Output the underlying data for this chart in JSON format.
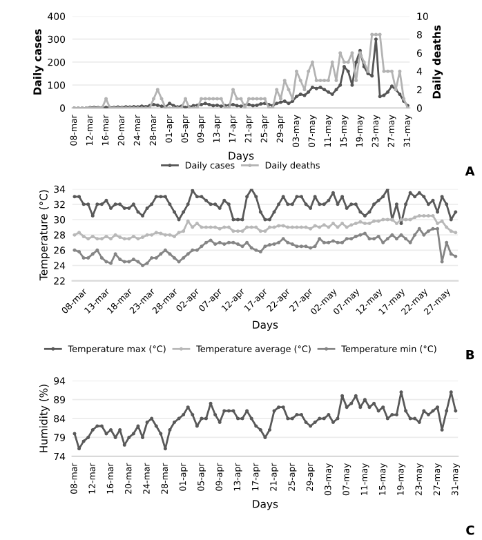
{
  "chart_data": [
    {
      "type": "line",
      "xlabel": "Days",
      "ylabel": "Daily cases",
      "y2label": "Daily deaths",
      "categories": [
        "08-mar",
        null,
        null,
        null,
        "12-mar",
        null,
        null,
        null,
        "16-mar",
        null,
        null,
        null,
        "20-mar",
        null,
        null,
        null,
        "24-mar",
        null,
        null,
        null,
        "28-mar",
        null,
        null,
        null,
        "01-apr",
        null,
        null,
        null,
        "05-apr",
        null,
        null,
        null,
        "09-apr",
        null,
        null,
        null,
        "13-apr",
        null,
        null,
        null,
        "17-apr",
        null,
        null,
        null,
        "21-apr",
        null,
        null,
        null,
        "25-apr",
        null,
        null,
        null,
        "29-apr",
        null,
        null,
        null,
        "03-may",
        null,
        null,
        null,
        "07-may",
        null,
        null,
        null,
        "11-may",
        null,
        null,
        null,
        "15-may",
        null,
        null,
        null,
        "19-may",
        null,
        null,
        null,
        "23-may",
        null,
        null,
        null,
        "27-may",
        null,
        null,
        null,
        "31-may"
      ],
      "series": [
        {
          "name": "Daily cases",
          "color": "#555555",
          "values": [
            0,
            0,
            0,
            0,
            2,
            3,
            2,
            1,
            3,
            2,
            3,
            4,
            3,
            5,
            4,
            6,
            5,
            8,
            6,
            10,
            15,
            12,
            8,
            5,
            20,
            10,
            5,
            8,
            3,
            5,
            10,
            12,
            15,
            20,
            15,
            10,
            12,
            8,
            10,
            12,
            15,
            10,
            8,
            12,
            15,
            10,
            12,
            18,
            20,
            15,
            10,
            20,
            25,
            30,
            20,
            30,
            50,
            60,
            55,
            70,
            90,
            85,
            90,
            80,
            70,
            60,
            80,
            100,
            180,
            160,
            100,
            200,
            250,
            180,
            150,
            140,
            300,
            50,
            55,
            70,
            95,
            80,
            60,
            30,
            10
          ]
        },
        {
          "name": "Daily deaths",
          "color": "#b3b3b3",
          "axis": "y2",
          "values": [
            0,
            0,
            0,
            0,
            0,
            0,
            0,
            0,
            1,
            0,
            0,
            0,
            0,
            0,
            0,
            0,
            0,
            0,
            0,
            0,
            1,
            2,
            1,
            0,
            0,
            0,
            0,
            0,
            1,
            0,
            0,
            0,
            1,
            1,
            1,
            1,
            1,
            1,
            0,
            0,
            2,
            1,
            1,
            0,
            1,
            1,
            1,
            1,
            1,
            0,
            0,
            2,
            1,
            3,
            2,
            1,
            4,
            3,
            2,
            4,
            5,
            3,
            3,
            3,
            3,
            5,
            3,
            6,
            5,
            5,
            6,
            3,
            6,
            5,
            4,
            8,
            8,
            8,
            4,
            4,
            4,
            2,
            4,
            1,
            0
          ]
        }
      ],
      "ylim": [
        0,
        400
      ],
      "yticks": [
        0,
        100,
        200,
        300,
        400
      ],
      "y2lim": [
        0,
        10
      ],
      "y2ticks": [
        0,
        2,
        4,
        6,
        8,
        10
      ],
      "grid": "y",
      "legend": "bottom",
      "marker": "circle",
      "annotations": [
        "A"
      ]
    },
    {
      "type": "line",
      "xlabel": "Days",
      "ylabel": "Temperature (°C)",
      "categories": [
        "08-mar",
        null,
        null,
        null,
        null,
        "13-mar",
        null,
        null,
        null,
        null,
        "18-mar",
        null,
        null,
        null,
        null,
        "23-mar",
        null,
        null,
        null,
        null,
        "28-mar",
        null,
        null,
        null,
        null,
        "02-apr",
        null,
        null,
        null,
        null,
        "07-apr",
        null,
        null,
        null,
        null,
        "12-apr",
        null,
        null,
        null,
        null,
        "17-apr",
        null,
        null,
        null,
        null,
        "22-apr",
        null,
        null,
        null,
        null,
        "27-apr",
        null,
        null,
        null,
        null,
        "02-may",
        null,
        null,
        null,
        null,
        "07-may",
        null,
        null,
        null,
        null,
        "12-may",
        null,
        null,
        null,
        null,
        "17-may",
        null,
        null,
        null,
        null,
        "22-may",
        null,
        null,
        null,
        null,
        "27-may",
        null,
        null,
        null,
        null
      ],
      "series": [
        {
          "name": "Temperature max (°C)",
          "color": "#595959",
          "values": [
            33,
            33,
            32,
            32,
            30.5,
            32,
            32,
            32.5,
            31.5,
            32,
            32,
            31.5,
            31.5,
            32,
            31,
            30.5,
            31.5,
            32,
            33,
            33,
            33,
            32,
            31,
            30,
            31,
            32,
            33.8,
            33,
            33,
            32.5,
            32,
            32,
            31.5,
            32.5,
            32,
            30,
            30,
            30,
            33,
            34,
            33,
            31,
            30,
            30,
            31,
            32,
            33,
            32,
            32,
            33,
            33,
            32,
            31.5,
            33,
            32,
            32,
            32.5,
            33.5,
            32,
            33,
            31.5,
            32,
            32,
            31,
            30.5,
            31,
            32,
            32.5,
            33,
            34,
            30,
            32,
            29.5,
            32,
            33.5,
            33,
            33.5,
            33,
            32,
            32.5,
            31,
            33,
            32,
            30,
            31
          ]
        },
        {
          "name": "Temperature average (°C)",
          "color": "#b8b8b8",
          "values": [
            28,
            28.3,
            27.8,
            27.5,
            27.8,
            27.5,
            27.5,
            27.8,
            27.5,
            28,
            27.7,
            27.5,
            27.5,
            27.8,
            27.5,
            27.7,
            28,
            28,
            28.3,
            28.2,
            28,
            28,
            27.8,
            28.3,
            28.5,
            29.8,
            29,
            29.5,
            29,
            29,
            29,
            29,
            28.8,
            29,
            29,
            28.5,
            28.5,
            28.5,
            29,
            29,
            29,
            28.5,
            28.5,
            29,
            29,
            29.2,
            29.2,
            29,
            29,
            29,
            29,
            29,
            28.8,
            29.2,
            29,
            29.3,
            29,
            29.5,
            29,
            29.5,
            29,
            29.3,
            29.5,
            29.7,
            29.5,
            29.5,
            29.8,
            29.8,
            30,
            30,
            30,
            29.5,
            30,
            30,
            30,
            30.3,
            30.5,
            30.5,
            30.5,
            30.5,
            29.5,
            29.8,
            29,
            28.5,
            28.3
          ]
        },
        {
          "name": "Temperature min (°C)",
          "color": "#858585",
          "values": [
            26,
            25.8,
            25,
            25,
            25.5,
            26,
            25,
            24.5,
            24.3,
            25.5,
            24.8,
            24.5,
            24.5,
            24.8,
            24.5,
            24,
            24.3,
            25,
            25,
            25.5,
            26,
            25.5,
            25,
            24.5,
            25,
            25.5,
            26,
            26,
            26.5,
            27,
            27.3,
            26.8,
            27,
            26.8,
            27,
            27,
            26.8,
            26.5,
            27,
            26.3,
            26,
            25.8,
            26.5,
            26.7,
            26.8,
            27,
            27.5,
            27,
            26.8,
            26.5,
            26.5,
            26.5,
            26.3,
            26.5,
            27.5,
            27,
            27,
            27.2,
            27,
            27,
            27.5,
            27.5,
            27.8,
            28,
            28.2,
            27.5,
            27.5,
            27.8,
            27,
            27.5,
            28,
            27.5,
            28,
            27.5,
            27,
            28,
            28.8,
            28,
            28.5,
            28.8,
            28.8,
            24.5,
            27,
            25.5,
            25.2
          ]
        }
      ],
      "ylim": [
        22,
        34
      ],
      "yticks": [
        22,
        24,
        26,
        28,
        30,
        32,
        34
      ],
      "grid": "y",
      "legend": "bottom",
      "marker": "circle",
      "annotations": [
        "B"
      ]
    },
    {
      "type": "line",
      "xlabel": "Days",
      "ylabel": "Humidity (%)",
      "categories": [
        "08-mar",
        null,
        null,
        null,
        "12-mar",
        null,
        null,
        null,
        "16-mar",
        null,
        null,
        null,
        "20-mar",
        null,
        null,
        null,
        "24-mar",
        null,
        null,
        null,
        "28-mar",
        null,
        null,
        null,
        "01-apr",
        null,
        null,
        null,
        "05-apr",
        null,
        null,
        null,
        "09-apr",
        null,
        null,
        null,
        "13-apr",
        null,
        null,
        null,
        "17-apr",
        null,
        null,
        null,
        "21-apr",
        null,
        null,
        null,
        "25-apr",
        null,
        null,
        null,
        "29-apr",
        null,
        null,
        null,
        "03-may",
        null,
        null,
        null,
        "07-may",
        null,
        null,
        null,
        "11-may",
        null,
        null,
        null,
        "15-may",
        null,
        null,
        null,
        "19-may",
        null,
        null,
        null,
        "23-may",
        null,
        null,
        null,
        "27-may",
        null,
        null,
        null,
        "31-may"
      ],
      "series": [
        {
          "color": "#595959",
          "values": [
            80,
            76,
            78,
            79,
            81,
            82,
            82,
            80,
            81,
            79,
            81,
            77,
            79,
            80,
            82,
            79,
            83,
            84,
            82,
            80,
            76,
            81,
            83,
            84,
            85,
            87,
            85,
            82,
            84,
            84,
            88,
            85,
            83,
            86,
            86,
            86,
            84,
            84,
            86,
            84,
            82,
            81,
            79,
            81,
            86,
            87,
            87,
            84,
            84,
            85,
            85,
            83,
            82,
            83,
            84,
            84,
            85,
            83,
            84,
            90,
            87,
            88,
            90,
            87,
            89,
            87,
            88,
            86,
            87,
            84,
            85,
            85,
            91,
            86,
            84,
            84,
            83,
            86,
            85,
            86,
            87,
            81,
            86,
            91,
            86
          ]
        }
      ],
      "ylim": [
        74,
        94
      ],
      "yticks": [
        74,
        79,
        84,
        89,
        94
      ],
      "grid": "y",
      "marker": "circle",
      "annotations": [
        "C"
      ]
    }
  ]
}
